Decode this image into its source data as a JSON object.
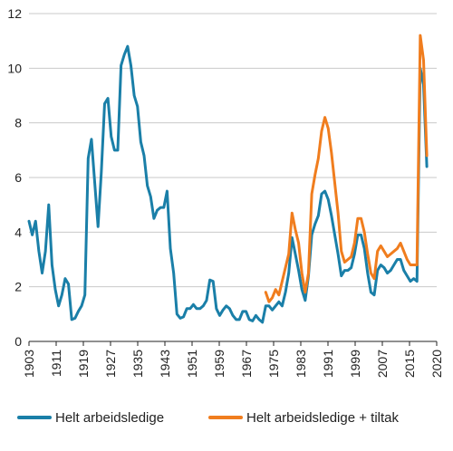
{
  "chart_data": {
    "type": "line",
    "title": "",
    "xlabel": "",
    "ylabel": "",
    "xlim": [
      1903,
      2020
    ],
    "ylim": [
      0,
      12
    ],
    "y_ticks": [
      0,
      2,
      4,
      6,
      8,
      10,
      12
    ],
    "x_ticks": [
      1903,
      1911,
      1919,
      1927,
      1935,
      1943,
      1951,
      1959,
      1967,
      1975,
      1983,
      1991,
      1999,
      2007,
      2015,
      2020
    ],
    "grid": {
      "horizontal": true,
      "vertical": false
    },
    "legend_position": "bottom",
    "series": [
      {
        "name": "Helt arbeidsledige",
        "color": "#1a7fa8",
        "points": [
          [
            1903,
            4.4
          ],
          [
            1904,
            3.9
          ],
          [
            1905,
            4.4
          ],
          [
            1906,
            3.3
          ],
          [
            1907,
            2.5
          ],
          [
            1908,
            3.3
          ],
          [
            1909,
            5.0
          ],
          [
            1910,
            2.8
          ],
          [
            1911,
            1.9
          ],
          [
            1912,
            1.3
          ],
          [
            1913,
            1.7
          ],
          [
            1914,
            2.3
          ],
          [
            1915,
            2.1
          ],
          [
            1916,
            0.8
          ],
          [
            1917,
            0.85
          ],
          [
            1918,
            1.1
          ],
          [
            1919,
            1.3
          ],
          [
            1920,
            1.7
          ],
          [
            1921,
            6.7
          ],
          [
            1922,
            7.4
          ],
          [
            1923,
            5.8
          ],
          [
            1924,
            4.2
          ],
          [
            1925,
            6.2
          ],
          [
            1926,
            8.7
          ],
          [
            1927,
            8.9
          ],
          [
            1928,
            7.5
          ],
          [
            1929,
            7.0
          ],
          [
            1930,
            7.0
          ],
          [
            1931,
            10.1
          ],
          [
            1932,
            10.5
          ],
          [
            1933,
            10.8
          ],
          [
            1934,
            10.1
          ],
          [
            1935,
            9.0
          ],
          [
            1936,
            8.6
          ],
          [
            1937,
            7.3
          ],
          [
            1938,
            6.8
          ],
          [
            1939,
            5.7
          ],
          [
            1940,
            5.3
          ],
          [
            1941,
            4.5
          ],
          [
            1942,
            4.8
          ],
          [
            1943,
            4.9
          ],
          [
            1944,
            4.9
          ],
          [
            1945,
            5.5
          ],
          [
            1946,
            3.4
          ],
          [
            1947,
            2.5
          ],
          [
            1948,
            1.0
          ],
          [
            1949,
            0.85
          ],
          [
            1950,
            0.9
          ],
          [
            1951,
            1.2
          ],
          [
            1952,
            1.2
          ],
          [
            1953,
            1.35
          ],
          [
            1954,
            1.2
          ],
          [
            1955,
            1.2
          ],
          [
            1956,
            1.3
          ],
          [
            1957,
            1.5
          ],
          [
            1958,
            2.25
          ],
          [
            1959,
            2.2
          ],
          [
            1960,
            1.2
          ],
          [
            1961,
            0.95
          ],
          [
            1962,
            1.15
          ],
          [
            1963,
            1.3
          ],
          [
            1964,
            1.2
          ],
          [
            1965,
            0.95
          ],
          [
            1966,
            0.8
          ],
          [
            1967,
            0.8
          ],
          [
            1968,
            1.1
          ],
          [
            1969,
            1.1
          ],
          [
            1970,
            0.8
          ],
          [
            1971,
            0.75
          ],
          [
            1972,
            0.95
          ],
          [
            1973,
            0.8
          ],
          [
            1974,
            0.7
          ],
          [
            1975,
            1.3
          ],
          [
            1976,
            1.3
          ],
          [
            1977,
            1.15
          ],
          [
            1978,
            1.3
          ],
          [
            1979,
            1.45
          ],
          [
            1980,
            1.3
          ],
          [
            1981,
            1.8
          ],
          [
            1982,
            2.5
          ],
          [
            1983,
            3.8
          ],
          [
            1984,
            3.2
          ],
          [
            1985,
            2.6
          ],
          [
            1986,
            1.9
          ],
          [
            1987,
            1.5
          ],
          [
            1988,
            2.4
          ],
          [
            1989,
            3.9
          ],
          [
            1990,
            4.3
          ],
          [
            1991,
            4.6
          ],
          [
            1992,
            5.4
          ],
          [
            1993,
            5.5
          ],
          [
            1994,
            5.2
          ],
          [
            1995,
            4.6
          ],
          [
            1996,
            3.9
          ],
          [
            1997,
            3.2
          ],
          [
            1998,
            2.4
          ],
          [
            1999,
            2.6
          ],
          [
            2000,
            2.6
          ],
          [
            2001,
            2.7
          ],
          [
            2002,
            3.2
          ],
          [
            2003,
            3.9
          ],
          [
            2004,
            3.9
          ],
          [
            2005,
            3.4
          ],
          [
            2006,
            2.5
          ],
          [
            2007,
            1.8
          ],
          [
            2008,
            1.7
          ],
          [
            2009,
            2.6
          ],
          [
            2010,
            2.8
          ],
          [
            2011,
            2.7
          ],
          [
            2012,
            2.5
          ],
          [
            2013,
            2.6
          ],
          [
            2014,
            2.8
          ],
          [
            2015,
            3.0
          ],
          [
            2016,
            3.0
          ],
          [
            2017,
            2.6
          ],
          [
            2018,
            2.4
          ],
          [
            2019,
            2.2
          ],
          [
            2020,
            2.3
          ],
          [
            2021,
            2.2
          ],
          [
            2022,
            10.0
          ],
          [
            2023,
            9.4
          ],
          [
            2024,
            6.4
          ]
        ]
      },
      {
        "name": "Helt arbeidsledige + tiltak",
        "color": "#f07d1e",
        "points": [
          [
            1975,
            1.8
          ],
          [
            1976,
            1.45
          ],
          [
            1977,
            1.6
          ],
          [
            1978,
            1.9
          ],
          [
            1979,
            1.7
          ],
          [
            1980,
            2.2
          ],
          [
            1981,
            2.7
          ],
          [
            1982,
            3.2
          ],
          [
            1983,
            4.7
          ],
          [
            1984,
            4.1
          ],
          [
            1985,
            3.6
          ],
          [
            1986,
            2.5
          ],
          [
            1987,
            1.8
          ],
          [
            1988,
            2.5
          ],
          [
            1989,
            5.4
          ],
          [
            1990,
            6.1
          ],
          [
            1991,
            6.7
          ],
          [
            1992,
            7.7
          ],
          [
            1993,
            8.2
          ],
          [
            1994,
            7.8
          ],
          [
            1995,
            6.9
          ],
          [
            1996,
            5.8
          ],
          [
            1997,
            4.7
          ],
          [
            1998,
            3.3
          ],
          [
            1999,
            2.9
          ],
          [
            2000,
            3.0
          ],
          [
            2001,
            3.1
          ],
          [
            2002,
            3.6
          ],
          [
            2003,
            4.5
          ],
          [
            2004,
            4.5
          ],
          [
            2005,
            4.0
          ],
          [
            2006,
            3.2
          ],
          [
            2007,
            2.5
          ],
          [
            2008,
            2.3
          ],
          [
            2009,
            3.3
          ],
          [
            2010,
            3.5
          ],
          [
            2011,
            3.3
          ],
          [
            2012,
            3.1
          ],
          [
            2013,
            3.2
          ],
          [
            2014,
            3.3
          ],
          [
            2015,
            3.4
          ],
          [
            2016,
            3.6
          ],
          [
            2017,
            3.3
          ],
          [
            2018,
            3.0
          ],
          [
            2019,
            2.8
          ],
          [
            2020,
            2.8
          ],
          [
            2021,
            2.8
          ],
          [
            2022,
            11.2
          ],
          [
            2023,
            10.3
          ],
          [
            2024,
            6.8
          ]
        ]
      }
    ]
  }
}
